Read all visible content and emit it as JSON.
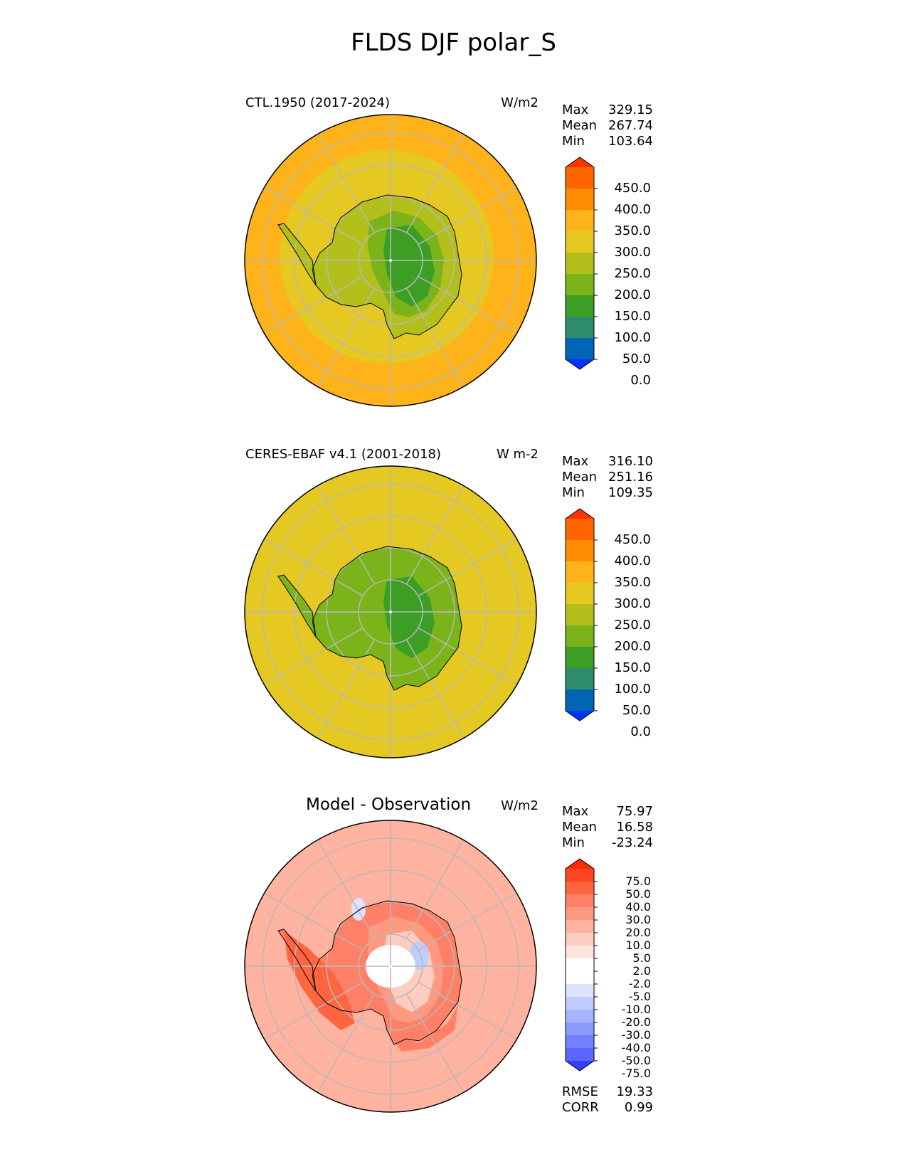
{
  "title": "FLDS DJF polar_S",
  "panels": [
    {
      "label": "CTL.1950 (2017-2024)",
      "units": "W/m2",
      "stats": [
        {
          "name": "Max",
          "value": "329.15"
        },
        {
          "name": "Mean",
          "value": "267.74"
        },
        {
          "name": "Min",
          "value": "103.64"
        }
      ],
      "colorbar": {
        "ticks": [
          "450.0",
          "400.0",
          "350.0",
          "300.0",
          "250.0",
          "200.0",
          "150.0",
          "100.0",
          "50.0",
          "0.0"
        ],
        "colors": [
          "#ff3300",
          "#ff6600",
          "#ff8c00",
          "#ffb31a",
          "#e6c822",
          "#b3bf1a",
          "#7ab31a",
          "#3d9e26",
          "#2e8c6b",
          "#0066b3",
          "#0033ff"
        ]
      },
      "fields": {
        "ocean": "#ffb31a",
        "outer_ring": "#e6c822",
        "coast": "#b3bf1a",
        "plateau": "#7ab31a",
        "interior": "#3d9e26"
      }
    },
    {
      "label": "CERES-EBAF v4.1 (2001-2018)",
      "units": "W m-2",
      "stats": [
        {
          "name": "Max",
          "value": "316.10"
        },
        {
          "name": "Mean",
          "value": "251.16"
        },
        {
          "name": "Min",
          "value": "109.35"
        }
      ],
      "colorbar": {
        "ticks": [
          "450.0",
          "400.0",
          "350.0",
          "300.0",
          "250.0",
          "200.0",
          "150.0",
          "100.0",
          "50.0",
          "0.0"
        ],
        "colors": [
          "#ff3300",
          "#ff6600",
          "#ff8c00",
          "#ffb31a",
          "#e6c822",
          "#b3bf1a",
          "#7ab31a",
          "#3d9e26",
          "#2e8c6b",
          "#0066b3",
          "#0033ff"
        ]
      },
      "fields": {
        "ocean": "#e6c822",
        "outer_ring": "#e6c822",
        "coast": "#7ab31a",
        "plateau": "#7ab31a",
        "interior": "#3d9e26"
      }
    },
    {
      "label": "Model - Observation",
      "units": "W/m2",
      "stats": [
        {
          "name": "Max",
          "value": "75.97"
        },
        {
          "name": "Mean",
          "value": "16.58"
        },
        {
          "name": "Min",
          "value": "-23.24"
        }
      ],
      "colorbar": {
        "ticks": [
          "75.0",
          "50.0",
          "40.0",
          "30.0",
          "20.0",
          "10.0",
          "5.0",
          "2.0",
          "-2.0",
          "-5.0",
          "-10.0",
          "-20.0",
          "-30.0",
          "-40.0",
          "-50.0",
          "-75.0"
        ],
        "colors": [
          "#ff2a00",
          "#ff4422",
          "#ff6640",
          "#ff8066",
          "#ff9980",
          "#ffb3a0",
          "#ffccc0",
          "#ffe3dc",
          "#ffffff",
          "#ffffff",
          "#dde3ff",
          "#c0ccff",
          "#a6b3ff",
          "#8c99ff",
          "#7380ff",
          "#5966ff",
          "#3340ff"
        ]
      },
      "fields": {
        "ocean": "#ffb3a0",
        "outer_ring": "#ffb3a0",
        "coast": "#ff8066",
        "plateau": "#ff9980",
        "interior": "#ffccc0"
      },
      "footer": [
        {
          "name": "RMSE",
          "value": "19.33"
        },
        {
          "name": "CORR",
          "value": "0.99"
        }
      ]
    }
  ]
}
